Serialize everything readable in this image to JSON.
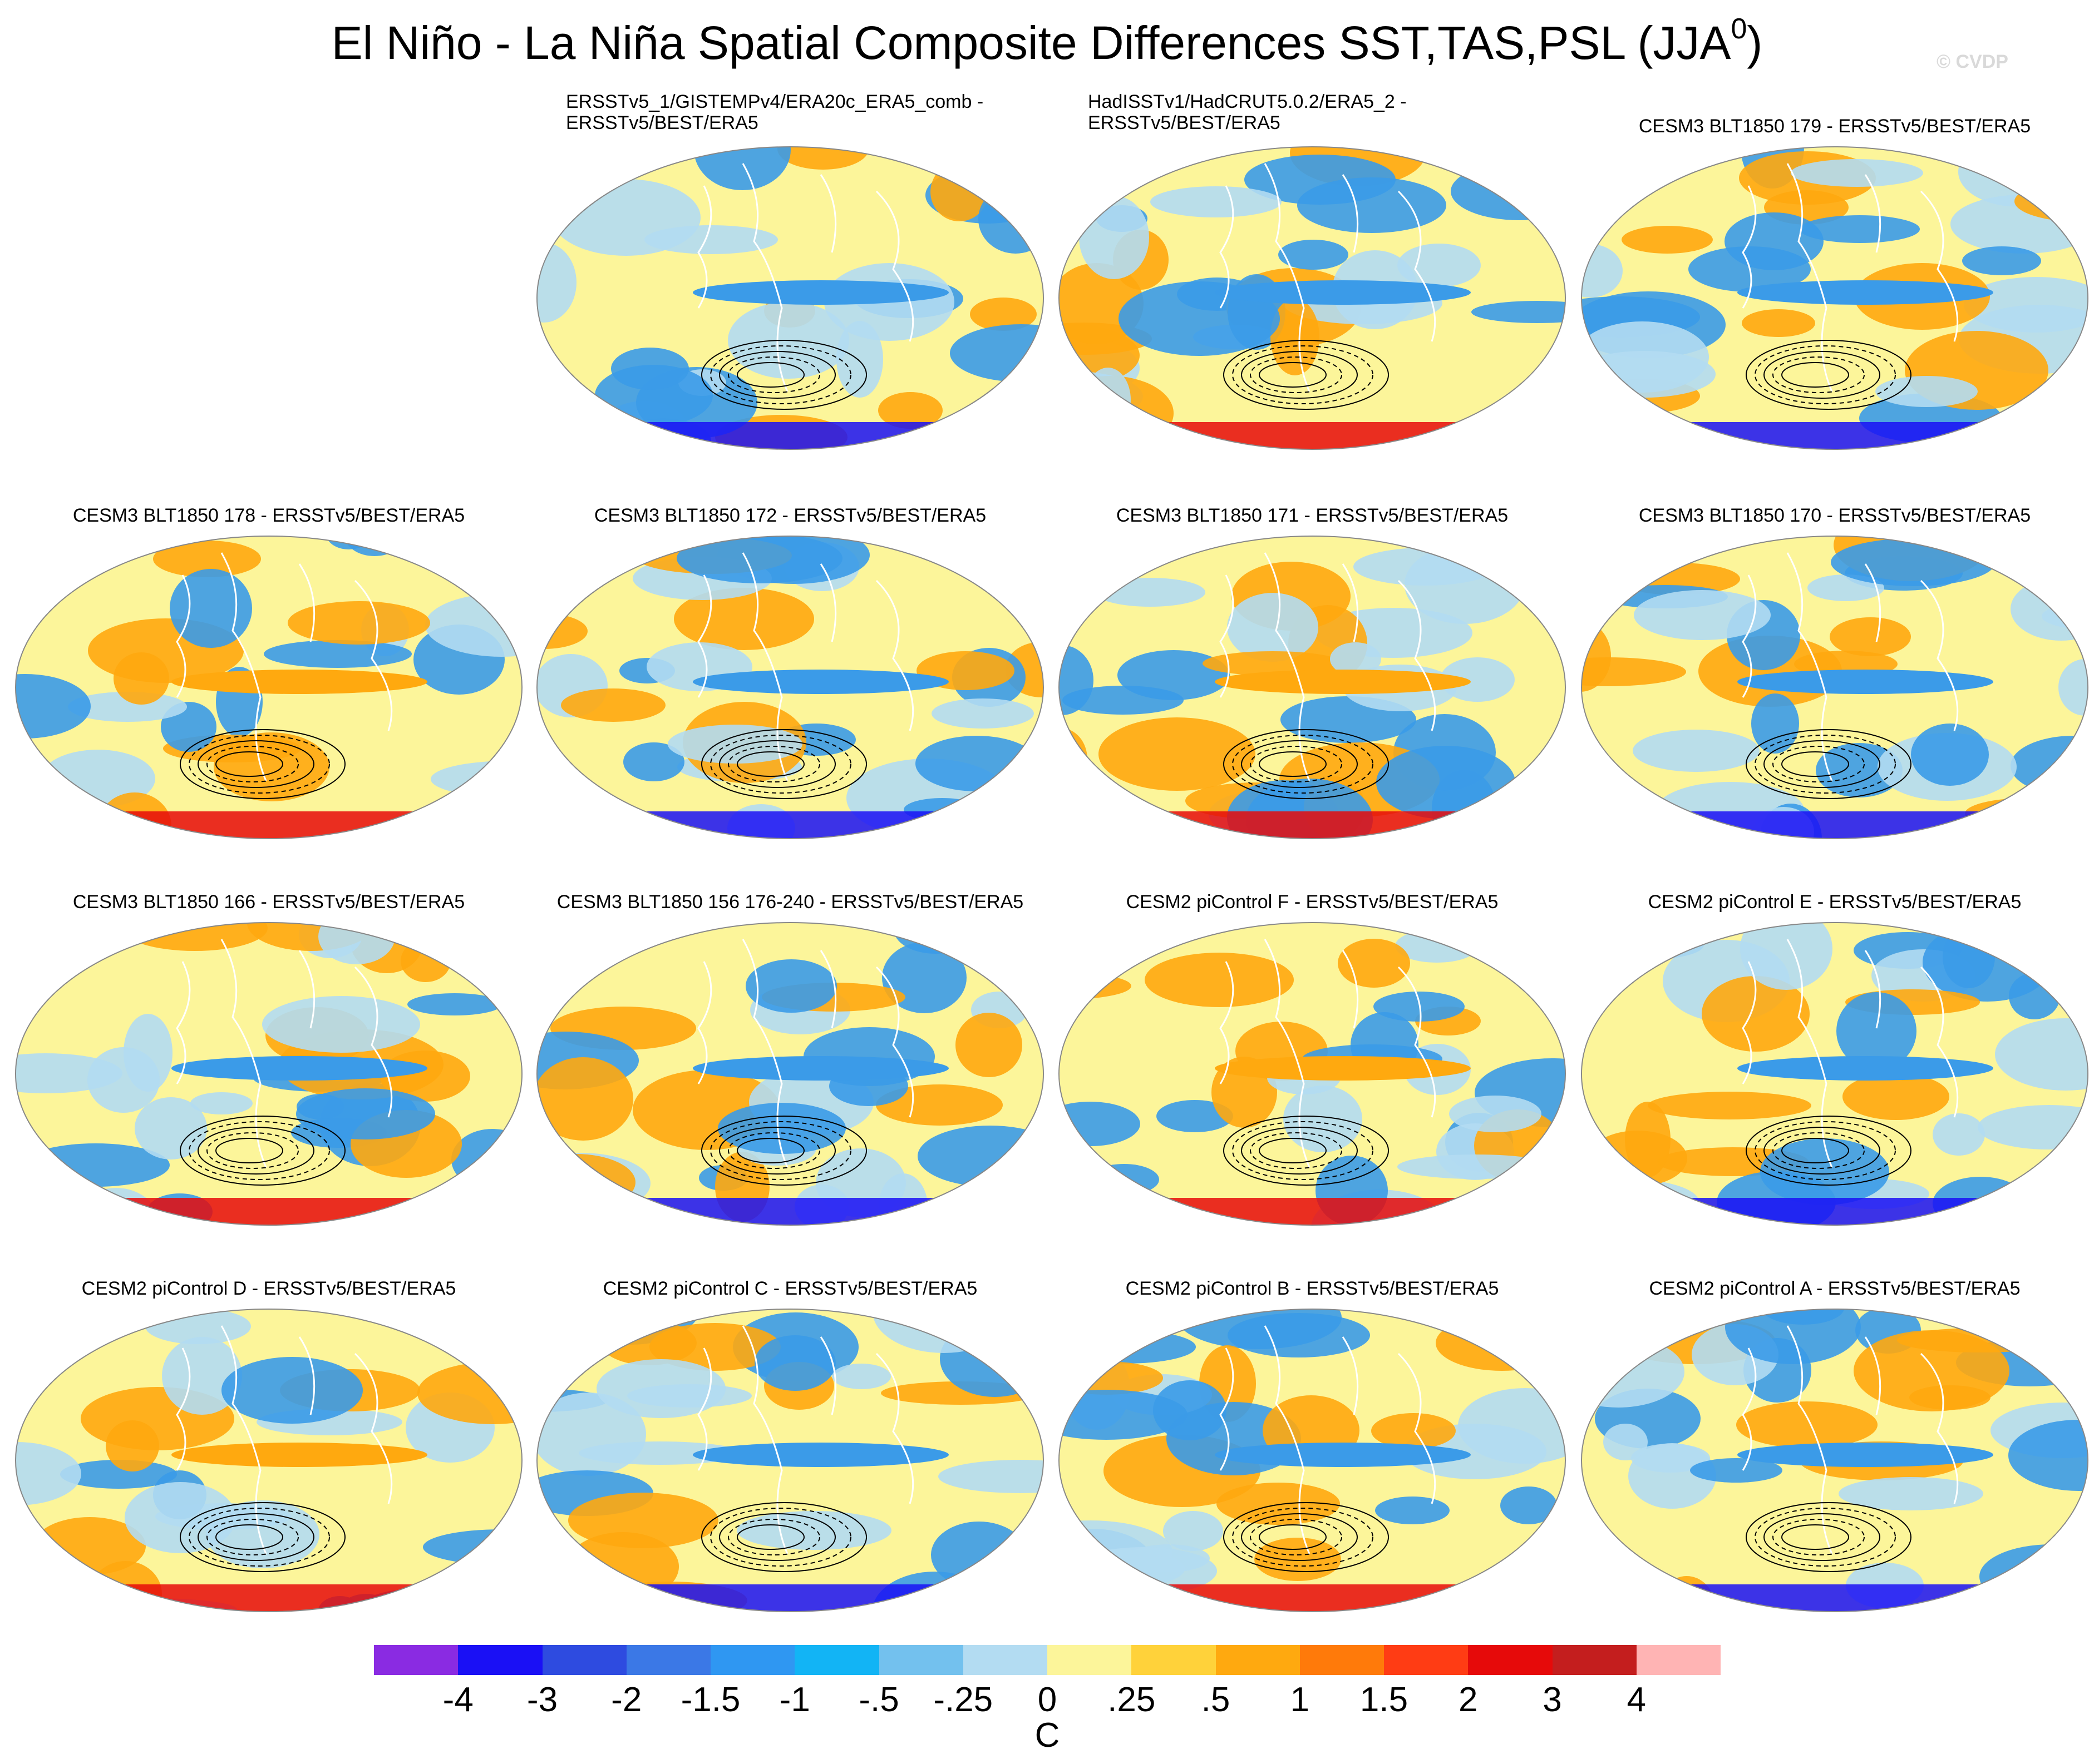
{
  "title": {
    "text": "El Niño - La Niña Spatial Composite Differences SST,TAS,PSL (JJA",
    "superscript": "0",
    "suffix": ")"
  },
  "copyright": "© CVDP",
  "panels": [
    {
      "title": [
        "ERSSTv5_1/GISTEMPv4/ERA20c_ERA5_comb -",
        "ERSSTv5/BEST/ERA5"
      ]
    },
    {
      "title": [
        "HadISSTv1/HadCRUT5.0.2/ERA5_2 -",
        "ERSSTv5/BEST/ERA5"
      ]
    },
    {
      "title": [
        "CESM3 BLT1850 179 - ERSSTv5/BEST/ERA5"
      ]
    },
    {
      "title": [
        "CESM3 BLT1850 178 - ERSSTv5/BEST/ERA5"
      ]
    },
    {
      "title": [
        "CESM3 BLT1850 172 - ERSSTv5/BEST/ERA5"
      ]
    },
    {
      "title": [
        "CESM3 BLT1850 171 - ERSSTv5/BEST/ERA5"
      ]
    },
    {
      "title": [
        "CESM3 BLT1850 170 - ERSSTv5/BEST/ERA5"
      ]
    },
    {
      "title": [
        "CESM3 BLT1850 166 - ERSSTv5/BEST/ERA5"
      ]
    },
    {
      "title": [
        "CESM3 BLT1850 156 176-240 - ERSSTv5/BEST/ERA5"
      ]
    },
    {
      "title": [
        "CESM2 piControl F - ERSSTv5/BEST/ERA5"
      ]
    },
    {
      "title": [
        "CESM2 piControl E - ERSSTv5/BEST/ERA5"
      ]
    },
    {
      "title": [
        "CESM2 piControl D - ERSSTv5/BEST/ERA5"
      ]
    },
    {
      "title": [
        "CESM2 piControl C - ERSSTv5/BEST/ERA5"
      ]
    },
    {
      "title": [
        "CESM2 piControl B - ERSSTv5/BEST/ERA5"
      ]
    },
    {
      "title": [
        "CESM2 piControl A - ERSSTv5/BEST/ERA5"
      ]
    }
  ],
  "colorbar": {
    "colors": [
      "#8a2be2",
      "#1a10f5",
      "#2e4be0",
      "#3b78e6",
      "#2f97f2",
      "#12b4f5",
      "#73c1ee",
      "#b3dcf2",
      "#fcf59a",
      "#ffd23a",
      "#ffa90f",
      "#ff7a0a",
      "#ff3c14",
      "#e60a0a",
      "#c41e1e",
      "#ffb4b4"
    ],
    "tick_labels": [
      "-4",
      "-3",
      "-2",
      "-1.5",
      "-1",
      "-.5",
      "-.25",
      "0",
      ".25",
      ".5",
      "1",
      "1.5",
      "2",
      "3",
      "4"
    ],
    "units": "C"
  },
  "map_palette": {
    "warm": "#ffa90f",
    "cool": "#3b9be8",
    "light_warm": "#fcf59a",
    "light_cool": "#b3dcf2",
    "hot": "#e60a0a",
    "cold": "#1a10f5",
    "coast": "#ffffff",
    "contour": "#000000"
  }
}
